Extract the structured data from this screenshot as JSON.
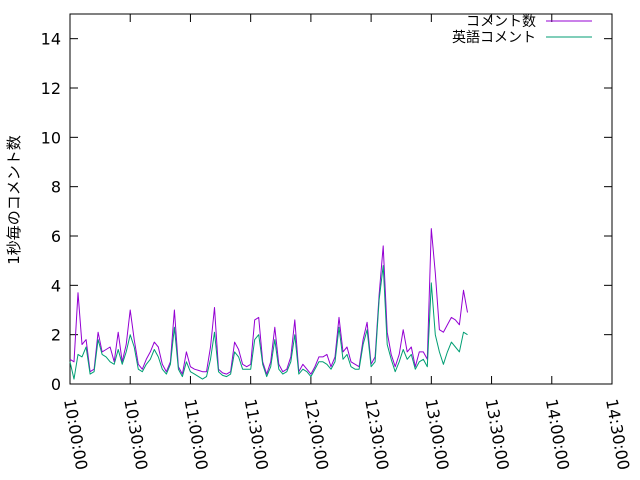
{
  "chart_data": {
    "type": "line",
    "title": "",
    "xlabel": "",
    "ylabel": "1秒毎のコメント数",
    "xlim": [
      "10:00:00",
      "14:30:00"
    ],
    "ylim": [
      0,
      15
    ],
    "y_ticks": [
      0,
      2,
      4,
      6,
      8,
      10,
      12,
      14
    ],
    "x_ticks": [
      "10:00:00",
      "10:30:00",
      "11:00:00",
      "11:30:00",
      "12:00:00",
      "12:30:00",
      "13:00:00",
      "13:30:00",
      "14:00:00",
      "14:30:00"
    ],
    "grid": false,
    "legend_position": "top-right",
    "series": [
      {
        "name": "コメント数",
        "color": "#9400d3",
        "points": [
          [
            "10:00:00",
            1.0
          ],
          [
            "10:02:00",
            0.9
          ],
          [
            "10:04:00",
            3.7
          ],
          [
            "10:06:00",
            1.6
          ],
          [
            "10:08:00",
            1.8
          ],
          [
            "10:10:00",
            0.5
          ],
          [
            "10:12:00",
            0.6
          ],
          [
            "10:14:00",
            2.1
          ],
          [
            "10:16:00",
            1.3
          ],
          [
            "10:18:00",
            1.4
          ],
          [
            "10:20:00",
            1.5
          ],
          [
            "10:22:00",
            0.9
          ],
          [
            "10:24:00",
            2.1
          ],
          [
            "10:26:00",
            0.9
          ],
          [
            "10:28:00",
            1.6
          ],
          [
            "10:30:00",
            3.0
          ],
          [
            "10:32:00",
            1.8
          ],
          [
            "10:34:00",
            0.8
          ],
          [
            "10:36:00",
            0.6
          ],
          [
            "10:38:00",
            1.0
          ],
          [
            "10:40:00",
            1.3
          ],
          [
            "10:42:00",
            1.7
          ],
          [
            "10:44:00",
            1.5
          ],
          [
            "10:46:00",
            0.8
          ],
          [
            "10:48:00",
            0.5
          ],
          [
            "10:50:00",
            0.9
          ],
          [
            "10:52:00",
            3.0
          ],
          [
            "10:54:00",
            0.7
          ],
          [
            "10:56:00",
            0.4
          ],
          [
            "10:58:00",
            1.3
          ],
          [
            "11:00:00",
            0.7
          ],
          [
            "11:02:00",
            0.6
          ],
          [
            "11:04:00",
            0.55
          ],
          [
            "11:06:00",
            0.5
          ],
          [
            "11:08:00",
            0.5
          ],
          [
            "11:10:00",
            1.5
          ],
          [
            "11:12:00",
            3.1
          ],
          [
            "11:14:00",
            0.6
          ],
          [
            "11:16:00",
            0.45
          ],
          [
            "11:18:00",
            0.4
          ],
          [
            "11:20:00",
            0.5
          ],
          [
            "11:22:00",
            1.7
          ],
          [
            "11:24:00",
            1.4
          ],
          [
            "11:26:00",
            0.8
          ],
          [
            "11:28:00",
            0.7
          ],
          [
            "11:30:00",
            0.8
          ],
          [
            "11:32:00",
            2.6
          ],
          [
            "11:34:00",
            2.7
          ],
          [
            "11:36:00",
            0.9
          ],
          [
            "11:38:00",
            0.4
          ],
          [
            "11:40:00",
            0.9
          ],
          [
            "11:42:00",
            2.3
          ],
          [
            "11:44:00",
            0.8
          ],
          [
            "11:46:00",
            0.5
          ],
          [
            "11:48:00",
            0.6
          ],
          [
            "11:50:00",
            1.1
          ],
          [
            "11:52:00",
            2.6
          ],
          [
            "11:54:00",
            0.5
          ],
          [
            "11:56:00",
            0.8
          ],
          [
            "11:58:00",
            0.6
          ],
          [
            "12:00:00",
            0.4
          ],
          [
            "12:02:00",
            0.7
          ],
          [
            "12:04:00",
            1.1
          ],
          [
            "12:06:00",
            1.1
          ],
          [
            "12:08:00",
            1.2
          ],
          [
            "12:10:00",
            0.7
          ],
          [
            "12:12:00",
            1.1
          ],
          [
            "12:14:00",
            2.7
          ],
          [
            "12:16:00",
            1.3
          ],
          [
            "12:18:00",
            1.5
          ],
          [
            "12:20:00",
            0.9
          ],
          [
            "12:22:00",
            0.8
          ],
          [
            "12:24:00",
            0.7
          ],
          [
            "12:26:00",
            1.8
          ],
          [
            "12:28:00",
            2.5
          ],
          [
            "12:30:00",
            0.8
          ],
          [
            "12:32:00",
            1.1
          ],
          [
            "12:34:00",
            3.6
          ],
          [
            "12:36:00",
            5.6
          ],
          [
            "12:38:00",
            2.1
          ],
          [
            "12:40:00",
            1.2
          ],
          [
            "12:42:00",
            0.7
          ],
          [
            "12:44:00",
            1.2
          ],
          [
            "12:46:00",
            2.2
          ],
          [
            "12:48:00",
            1.3
          ],
          [
            "12:50:00",
            1.5
          ],
          [
            "12:52:00",
            0.7
          ],
          [
            "12:54:00",
            1.3
          ],
          [
            "12:56:00",
            1.3
          ],
          [
            "12:58:00",
            1.0
          ],
          [
            "13:00:00",
            6.3
          ],
          [
            "13:02:00",
            4.5
          ],
          [
            "13:04:00",
            2.2
          ],
          [
            "13:06:00",
            2.1
          ],
          [
            "13:08:00",
            2.4
          ],
          [
            "13:10:00",
            2.7
          ],
          [
            "13:12:00",
            2.6
          ],
          [
            "13:14:00",
            2.4
          ],
          [
            "13:16:00",
            3.8
          ],
          [
            "13:18:00",
            2.9
          ]
        ]
      },
      {
        "name": "英語コメント",
        "color": "#009e73",
        "points": [
          [
            "10:00:00",
            0.9
          ],
          [
            "10:02:00",
            0.2
          ],
          [
            "10:04:00",
            1.2
          ],
          [
            "10:06:00",
            1.1
          ],
          [
            "10:08:00",
            1.5
          ],
          [
            "10:10:00",
            0.4
          ],
          [
            "10:12:00",
            0.5
          ],
          [
            "10:14:00",
            1.8
          ],
          [
            "10:16:00",
            1.2
          ],
          [
            "10:18:00",
            1.1
          ],
          [
            "10:20:00",
            0.9
          ],
          [
            "10:22:00",
            0.8
          ],
          [
            "10:24:00",
            1.4
          ],
          [
            "10:26:00",
            0.8
          ],
          [
            "10:28:00",
            1.3
          ],
          [
            "10:30:00",
            2.0
          ],
          [
            "10:32:00",
            1.5
          ],
          [
            "10:34:00",
            0.6
          ],
          [
            "10:36:00",
            0.5
          ],
          [
            "10:38:00",
            0.8
          ],
          [
            "10:40:00",
            1.0
          ],
          [
            "10:42:00",
            1.4
          ],
          [
            "10:44:00",
            1.1
          ],
          [
            "10:46:00",
            0.6
          ],
          [
            "10:48:00",
            0.4
          ],
          [
            "10:50:00",
            0.8
          ],
          [
            "10:52:00",
            2.3
          ],
          [
            "10:54:00",
            0.6
          ],
          [
            "10:56:00",
            0.3
          ],
          [
            "10:58:00",
            0.9
          ],
          [
            "11:00:00",
            0.5
          ],
          [
            "11:02:00",
            0.4
          ],
          [
            "11:04:00",
            0.3
          ],
          [
            "11:06:00",
            0.2
          ],
          [
            "11:08:00",
            0.3
          ],
          [
            "11:10:00",
            1.0
          ],
          [
            "11:12:00",
            2.1
          ],
          [
            "11:14:00",
            0.5
          ],
          [
            "11:16:00",
            0.35
          ],
          [
            "11:18:00",
            0.3
          ],
          [
            "11:20:00",
            0.4
          ],
          [
            "11:22:00",
            1.3
          ],
          [
            "11:24:00",
            1.1
          ],
          [
            "11:26:00",
            0.6
          ],
          [
            "11:28:00",
            0.6
          ],
          [
            "11:30:00",
            0.6
          ],
          [
            "11:32:00",
            1.8
          ],
          [
            "11:34:00",
            2.0
          ],
          [
            "11:36:00",
            0.8
          ],
          [
            "11:38:00",
            0.3
          ],
          [
            "11:40:00",
            0.7
          ],
          [
            "11:42:00",
            1.8
          ],
          [
            "11:44:00",
            0.6
          ],
          [
            "11:46:00",
            0.4
          ],
          [
            "11:48:00",
            0.5
          ],
          [
            "11:50:00",
            0.9
          ],
          [
            "11:52:00",
            2.0
          ],
          [
            "11:54:00",
            0.4
          ],
          [
            "11:56:00",
            0.6
          ],
          [
            "11:58:00",
            0.5
          ],
          [
            "12:00:00",
            0.3
          ],
          [
            "12:02:00",
            0.6
          ],
          [
            "12:04:00",
            0.9
          ],
          [
            "12:06:00",
            0.9
          ],
          [
            "12:08:00",
            0.8
          ],
          [
            "12:10:00",
            0.6
          ],
          [
            "12:12:00",
            0.9
          ],
          [
            "12:14:00",
            2.3
          ],
          [
            "12:16:00",
            1.0
          ],
          [
            "12:18:00",
            1.2
          ],
          [
            "12:20:00",
            0.7
          ],
          [
            "12:22:00",
            0.6
          ],
          [
            "12:24:00",
            0.6
          ],
          [
            "12:26:00",
            1.6
          ],
          [
            "12:28:00",
            2.2
          ],
          [
            "12:30:00",
            0.7
          ],
          [
            "12:32:00",
            0.9
          ],
          [
            "12:34:00",
            3.4
          ],
          [
            "12:36:00",
            4.8
          ],
          [
            "12:38:00",
            1.6
          ],
          [
            "12:40:00",
            1.0
          ],
          [
            "12:42:00",
            0.5
          ],
          [
            "12:44:00",
            0.9
          ],
          [
            "12:46:00",
            1.4
          ],
          [
            "12:48:00",
            1.0
          ],
          [
            "12:50:00",
            1.2
          ],
          [
            "12:52:00",
            0.6
          ],
          [
            "12:54:00",
            0.9
          ],
          [
            "12:56:00",
            1.0
          ],
          [
            "12:58:00",
            0.7
          ],
          [
            "13:00:00",
            4.1
          ],
          [
            "13:02:00",
            2.0
          ],
          [
            "13:04:00",
            1.3
          ],
          [
            "13:06:00",
            0.8
          ],
          [
            "13:08:00",
            1.3
          ],
          [
            "13:10:00",
            1.7
          ],
          [
            "13:12:00",
            1.5
          ],
          [
            "13:14:00",
            1.3
          ],
          [
            "13:16:00",
            2.1
          ],
          [
            "13:18:00",
            2.0
          ]
        ]
      }
    ]
  }
}
